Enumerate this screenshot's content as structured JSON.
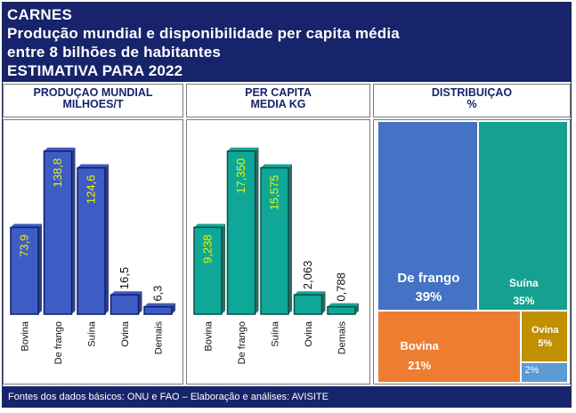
{
  "header": {
    "line1": "CARNES",
    "line2": "Produção mundial e disponibilidade per capita média",
    "line3": "entre 8 bilhões de habitantes",
    "line4": "ESTIMATIVA PARA 2022"
  },
  "panels": {
    "production": {
      "line1": "PRODUÇAO MUNDIAL",
      "line2": "MILHOES/T"
    },
    "percapita": {
      "line1": "PER CAPITA",
      "line2": "MEDIA KG"
    },
    "distribution": {
      "line1": "DISTRIBUIÇAO",
      "line2": "%"
    }
  },
  "footer": {
    "text": "Fontes dos dados básicos: ONU e FAO – Elaboração e análises: AVISITE"
  },
  "colors": {
    "header_bg": "#17246b",
    "bar_blue": "#3d5cc4",
    "bar_teal": "#0fa898",
    "tm_frango": "#4472c4",
    "tm_suina": "#16a08f",
    "tm_bovina": "#ed7d31",
    "tm_ovina": "#c09000",
    "tm_demais": "#5b9bd5"
  },
  "chart_data": [
    {
      "type": "bar",
      "title": "PRODUÇAO MUNDIAL MILHOES/T",
      "categories": [
        "Bovina",
        "De frango",
        "Suína",
        "Ovina",
        "Demais"
      ],
      "values": [
        73.9,
        138.8,
        124.6,
        16.5,
        6.3
      ],
      "value_labels": [
        "73,9",
        "138,8",
        "124,6",
        "16,5",
        "6,3"
      ],
      "ylim": [
        0,
        150
      ]
    },
    {
      "type": "bar",
      "title": "PER CAPITA MEDIA KG",
      "categories": [
        "Bovina",
        "De frango",
        "Suína",
        "Ovina",
        "Demais"
      ],
      "values": [
        9.238,
        17.35,
        15.575,
        2.063,
        0.788
      ],
      "value_labels": [
        "9,238",
        "17,350",
        "15,575",
        "2,063",
        "0,788"
      ],
      "ylim": [
        0,
        18.75
      ]
    },
    {
      "type": "treemap",
      "title": "DISTRIBUIÇAO %",
      "categories": [
        "De frango",
        "Suína",
        "Bovina",
        "Ovina",
        "Demais"
      ],
      "values": [
        39,
        35,
        21,
        5,
        2
      ],
      "value_labels": [
        "39%",
        "35%",
        "21%",
        "5%",
        "2%"
      ]
    }
  ]
}
